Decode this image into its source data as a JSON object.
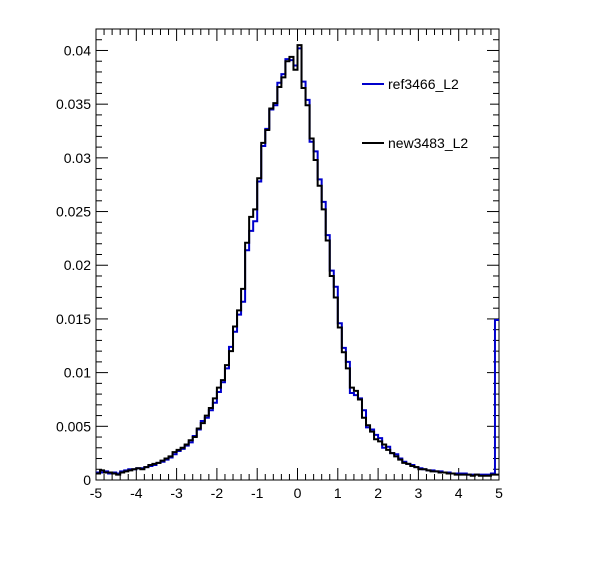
{
  "chart_data": {
    "type": "step",
    "title": "",
    "xlabel": "",
    "ylabel": "",
    "xlim": [
      -5,
      5
    ],
    "ylim": [
      0,
      0.042
    ],
    "grid": false,
    "legend_position": "top-right",
    "x_tick_labels": [
      "-5",
      "-4",
      "-3",
      "-2",
      "-1",
      "0",
      "1",
      "2",
      "3",
      "4",
      "5"
    ],
    "y_tick_labels": [
      "0",
      "0.005",
      "0.01",
      "0.015",
      "0.02",
      "0.025",
      "0.03",
      "0.035",
      "0.04"
    ],
    "bins": {
      "low": -5,
      "high": 5,
      "count": 100
    },
    "series": [
      {
        "name": "ref3466_L2",
        "color": "#0000cc",
        "values": [
          0.0007,
          0.0007,
          0.0008,
          0.0006,
          0.0007,
          0.0006,
          0.0008,
          0.0009,
          0.001,
          0.001,
          0.0011,
          0.0011,
          0.0012,
          0.0013,
          0.0014,
          0.0016,
          0.0017,
          0.0019,
          0.0021,
          0.0024,
          0.0027,
          0.0029,
          0.0032,
          0.0035,
          0.0041,
          0.0047,
          0.0055,
          0.0058,
          0.0065,
          0.0072,
          0.0082,
          0.0091,
          0.0104,
          0.0124,
          0.0138,
          0.0154,
          0.0166,
          0.0214,
          0.0232,
          0.0241,
          0.0278,
          0.0311,
          0.0327,
          0.0345,
          0.0349,
          0.037,
          0.0378,
          0.0392,
          0.0391,
          0.0386,
          0.0402,
          0.0371,
          0.0354,
          0.0315,
          0.0306,
          0.028,
          0.0259,
          0.0228,
          0.0195,
          0.018,
          0.0146,
          0.0123,
          0.011,
          0.0081,
          0.0079,
          0.0076,
          0.0065,
          0.0049,
          0.0047,
          0.0042,
          0.0039,
          0.003,
          0.0031,
          0.0025,
          0.0024,
          0.002,
          0.0017,
          0.0015,
          0.0014,
          0.0012,
          0.0011,
          0.001,
          0.0009,
          0.0009,
          0.0008,
          0.0008,
          0.0007,
          0.0007,
          0.0006,
          0.0006,
          0.0006,
          0.0006,
          0.0005,
          0.0005,
          0.0005,
          0.0005,
          0.0005,
          0.0005,
          0.0006,
          0.0149
        ]
      },
      {
        "name": "new3483_L2",
        "color": "#000000",
        "values": [
          0.0006,
          0.0009,
          0.0007,
          0.0007,
          0.0006,
          0.0005,
          0.0007,
          0.0008,
          0.0009,
          0.001,
          0.0011,
          0.001,
          0.0012,
          0.0014,
          0.0015,
          0.0016,
          0.0018,
          0.002,
          0.0022,
          0.0026,
          0.0028,
          0.003,
          0.0033,
          0.0037,
          0.004,
          0.0048,
          0.0053,
          0.006,
          0.0067,
          0.0076,
          0.0086,
          0.0093,
          0.0107,
          0.012,
          0.0143,
          0.0158,
          0.0178,
          0.0221,
          0.0245,
          0.0252,
          0.0281,
          0.0314,
          0.0326,
          0.0346,
          0.0351,
          0.0366,
          0.0375,
          0.039,
          0.0394,
          0.0382,
          0.0405,
          0.0365,
          0.0349,
          0.0318,
          0.0298,
          0.0274,
          0.0252,
          0.0223,
          0.019,
          0.017,
          0.0142,
          0.0119,
          0.0104,
          0.0086,
          0.0083,
          0.0075,
          0.0058,
          0.0051,
          0.0045,
          0.0038,
          0.0036,
          0.0033,
          0.0028,
          0.0025,
          0.0022,
          0.0019,
          0.0016,
          0.0015,
          0.0013,
          0.0012,
          0.001,
          0.001,
          0.0009,
          0.0008,
          0.0008,
          0.0007,
          0.0007,
          0.0006,
          0.0006,
          0.0005,
          0.0005,
          0.0005,
          0.0005,
          0.0004,
          0.0005,
          0.0004,
          0.0004,
          0.0004,
          0.0005,
          0.0005
        ]
      }
    ]
  }
}
